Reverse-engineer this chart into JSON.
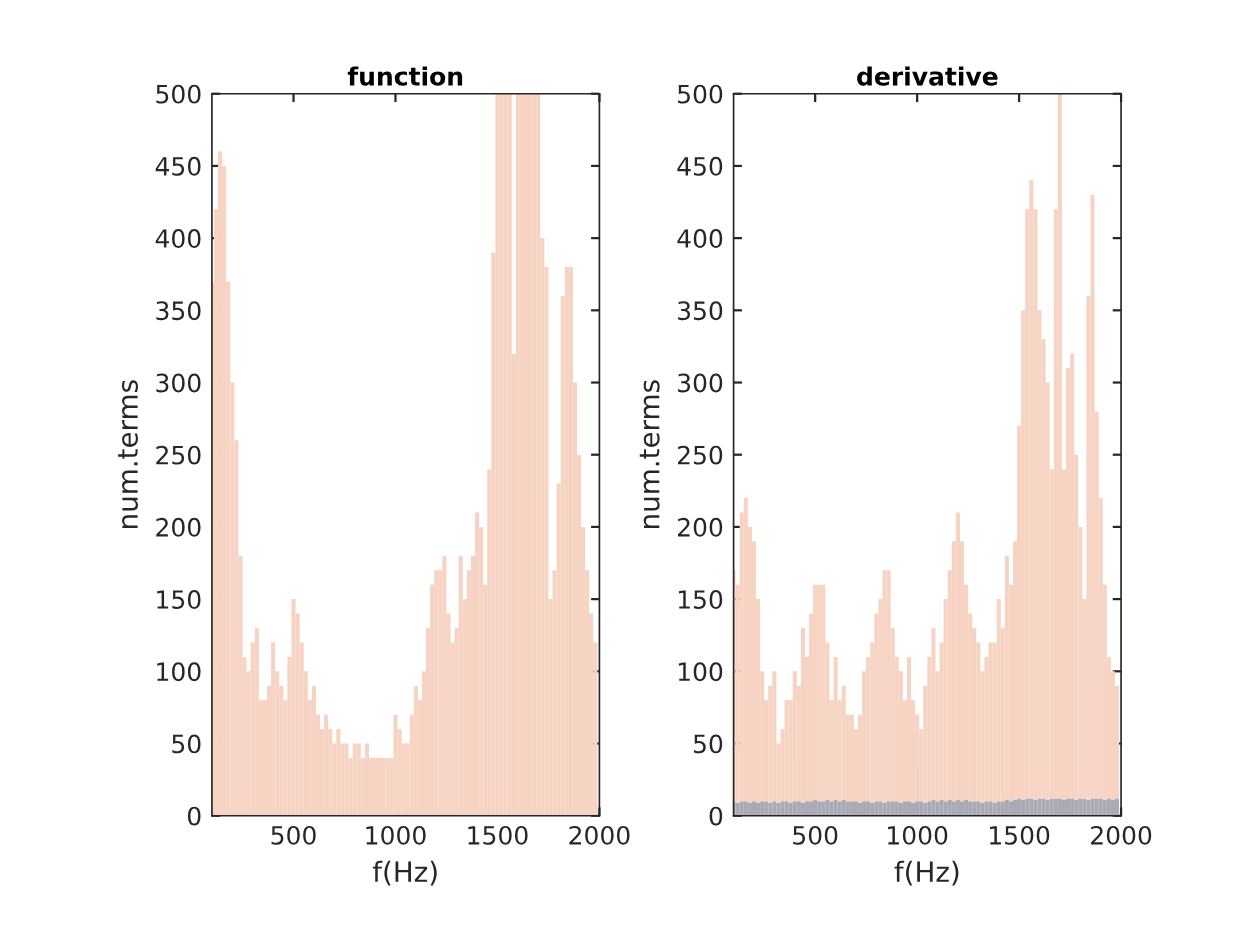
{
  "chart_data": [
    {
      "type": "bar",
      "title": "function",
      "xlabel": "f(Hz)",
      "ylabel": "num.terms",
      "xlim": [
        100,
        2000
      ],
      "xticks": [
        500,
        1000,
        1500,
        2000
      ],
      "ylim": [
        0,
        500
      ],
      "yticks": [
        0,
        50,
        100,
        150,
        200,
        250,
        300,
        350,
        400,
        450,
        500
      ],
      "x": [
        100,
        120,
        140,
        160,
        180,
        200,
        220,
        240,
        260,
        280,
        300,
        320,
        340,
        360,
        380,
        400,
        420,
        440,
        460,
        480,
        500,
        520,
        540,
        560,
        580,
        600,
        620,
        640,
        660,
        680,
        700,
        720,
        740,
        760,
        780,
        800,
        820,
        840,
        860,
        880,
        900,
        920,
        940,
        960,
        980,
        1000,
        1020,
        1040,
        1060,
        1080,
        1100,
        1120,
        1140,
        1160,
        1180,
        1200,
        1220,
        1240,
        1260,
        1280,
        1300,
        1320,
        1340,
        1360,
        1380,
        1400,
        1420,
        1440,
        1460,
        1480,
        1500,
        1520,
        1540,
        1560,
        1580,
        1600,
        1620,
        1640,
        1660,
        1680,
        1700,
        1720,
        1740,
        1760,
        1780,
        1800,
        1820,
        1840,
        1860,
        1880,
        1900,
        1920,
        1940,
        1960,
        1980
      ],
      "series": [
        {
          "color": "#f6d3c2",
          "values": [
            370,
            420,
            460,
            450,
            370,
            300,
            260,
            180,
            110,
            100,
            120,
            130,
            80,
            80,
            90,
            120,
            100,
            90,
            80,
            110,
            150,
            140,
            120,
            100,
            80,
            90,
            70,
            60,
            70,
            60,
            50,
            60,
            50,
            50,
            40,
            50,
            50,
            40,
            50,
            40,
            40,
            40,
            40,
            40,
            40,
            70,
            60,
            50,
            50,
            70,
            90,
            80,
            100,
            130,
            160,
            170,
            170,
            180,
            140,
            120,
            130,
            180,
            150,
            170,
            180,
            210,
            200,
            160,
            240,
            390,
            500,
            500,
            500,
            500,
            320,
            500,
            500,
            500,
            500,
            500,
            500,
            400,
            380,
            150,
            170,
            230,
            360,
            380,
            380,
            300,
            250,
            200,
            170,
            140,
            120
          ]
        }
      ]
    },
    {
      "type": "bar",
      "title": "derivative",
      "xlabel": "f(Hz)",
      "ylabel": "num.terms",
      "xlim": [
        100,
        2000
      ],
      "xticks": [
        500,
        1000,
        1500,
        2000
      ],
      "ylim": [
        0,
        500
      ],
      "yticks": [
        0,
        50,
        100,
        150,
        200,
        250,
        300,
        350,
        400,
        450,
        500
      ],
      "x": [
        100,
        120,
        140,
        160,
        180,
        200,
        220,
        240,
        260,
        280,
        300,
        320,
        340,
        360,
        380,
        400,
        420,
        440,
        460,
        480,
        500,
        520,
        540,
        560,
        580,
        600,
        620,
        640,
        660,
        680,
        700,
        720,
        740,
        760,
        780,
        800,
        820,
        840,
        860,
        880,
        900,
        920,
        940,
        960,
        980,
        1000,
        1020,
        1040,
        1060,
        1080,
        1100,
        1120,
        1140,
        1160,
        1180,
        1200,
        1220,
        1240,
        1260,
        1280,
        1300,
        1320,
        1340,
        1360,
        1380,
        1400,
        1420,
        1440,
        1460,
        1480,
        1500,
        1520,
        1540,
        1560,
        1580,
        1600,
        1620,
        1640,
        1660,
        1680,
        1700,
        1720,
        1740,
        1760,
        1780,
        1800,
        1820,
        1840,
        1860,
        1880,
        1900,
        1920,
        1940,
        1960,
        1980
      ],
      "series": [
        {
          "color": "#a9aab5",
          "values": [
            10,
            9,
            10,
            10,
            9,
            10,
            9,
            10,
            10,
            9,
            10,
            9,
            10,
            10,
            9,
            10,
            10,
            9,
            10,
            10,
            11,
            10,
            10,
            11,
            10,
            11,
            10,
            11,
            10,
            10,
            10,
            9,
            10,
            10,
            9,
            10,
            10,
            9,
            10,
            10,
            10,
            9,
            10,
            10,
            9,
            10,
            10,
            9,
            10,
            11,
            10,
            11,
            10,
            11,
            10,
            11,
            10,
            11,
            10,
            10,
            10,
            9,
            10,
            10,
            9,
            10,
            10,
            11,
            10,
            11,
            12,
            11,
            12,
            12,
            11,
            12,
            12,
            11,
            12,
            12,
            12,
            11,
            12,
            12,
            11,
            12,
            12,
            11,
            12,
            12,
            12,
            11,
            12,
            11,
            12
          ]
        },
        {
          "color": "#f6d3c2",
          "values": [
            160,
            151,
            200,
            210,
            191,
            180,
            141,
            90,
            70,
            81,
            90,
            41,
            50,
            70,
            71,
            90,
            80,
            121,
            100,
            130,
            149,
            150,
            150,
            109,
            70,
            99,
            70,
            79,
            60,
            60,
            50,
            61,
            90,
            100,
            111,
            130,
            140,
            161,
            160,
            120,
            100,
            91,
            70,
            100,
            71,
            60,
            50,
            81,
            100,
            119,
            90,
            109,
            140,
            159,
            180,
            199,
            180,
            149,
            130,
            120,
            110,
            91,
            100,
            110,
            111,
            140,
            120,
            169,
            150,
            179,
            258,
            339,
            408,
            428,
            409,
            338,
            318,
            289,
            228,
            408,
            488,
            229,
            298,
            308,
            239,
            188,
            138,
            349,
            418,
            268,
            208,
            149,
            98,
            89,
            78
          ]
        }
      ],
      "stacked": true
    }
  ]
}
